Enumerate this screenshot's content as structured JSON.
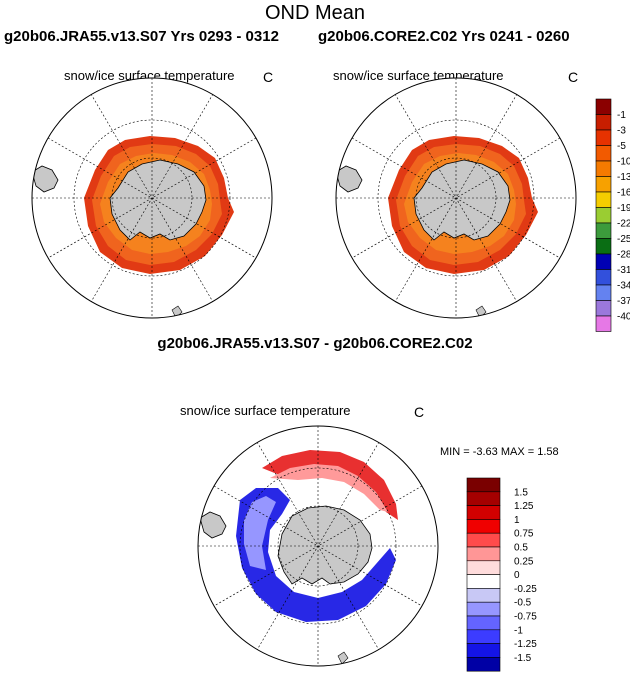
{
  "page_title": "OND Mean",
  "left_case": "g20b06.JRA55.v13.S07  Yrs 0293 - 0312",
  "right_case": "g20b06.CORE2.C02  Yrs 0241 - 0260",
  "diff_title": "g20b06.JRA55.v13.S07 - g20b06.CORE2.C02",
  "variable": "snow/ice surface temperature",
  "unit": "C",
  "minmax_text": "MIN =  -3.63 MAX =   1.58",
  "chart_data": [
    {
      "type": "heatmap",
      "projection": "south polar stereographic",
      "title": "snow/ice surface temperature",
      "case": "g20b06.JRA55.v13.S07",
      "years": "0293 - 0312",
      "units": "C",
      "field_description": "Sea-ice ring around Antarctica mostly -5 to -13 C, near -1 to -3 C at outer ice edge",
      "colorbar": {
        "levels": [
          "-1",
          "-3",
          "-5",
          "-10",
          "-13",
          "-16",
          "-19",
          "-22",
          "-25",
          "-28",
          "-31",
          "-34",
          "-37",
          "-40"
        ],
        "colors": [
          "#8b0000",
          "#c81e00",
          "#e63200",
          "#f25a00",
          "#f57a00",
          "#f7a100",
          "#f5cd00",
          "#9acd32",
          "#3c9b3c",
          "#0a6e14",
          "#0000b4",
          "#3250dc",
          "#6482f0",
          "#9b78dc",
          "#e678e6"
        ]
      }
    },
    {
      "type": "heatmap",
      "projection": "south polar stereographic",
      "title": "snow/ice surface temperature",
      "case": "g20b06.CORE2.C02",
      "years": "0241 - 0260",
      "units": "C",
      "field_description": "Sea-ice ring around Antarctica mostly -5 to -13 C, near -1 to -3 C at outer ice edge"
    },
    {
      "type": "heatmap",
      "projection": "south polar stereographic",
      "title": "snow/ice surface temperature",
      "case": "g20b06.JRA55.v13.S07 - g20b06.CORE2.C02",
      "units": "C",
      "min": -3.63,
      "max": 1.58,
      "field_description": "Difference field: positive (red) north of Ross/Amundsen sector, negative (blue) in Weddell/Indian sector",
      "colorbar": {
        "levels": [
          "1.5",
          "1.25",
          "1",
          "0.75",
          "0.5",
          "0.25",
          "0",
          "-0.25",
          "-0.5",
          "-0.75",
          "-1",
          "-1.25",
          "-1.5"
        ],
        "colors": [
          "#7a0000",
          "#a50000",
          "#d20000",
          "#f00000",
          "#ff4b4b",
          "#ff9696",
          "#ffdcdc",
          "#ffffff",
          "#c8c8f5",
          "#9696ff",
          "#6464ff",
          "#3c3cff",
          "#1414e6",
          "#0000a5"
        ]
      }
    }
  ]
}
